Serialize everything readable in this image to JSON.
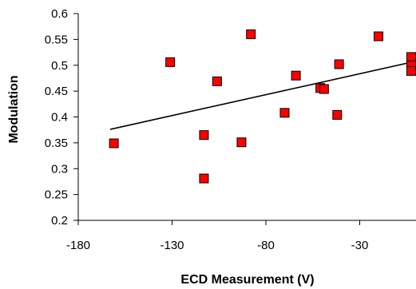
{
  "chart_data": {
    "type": "scatter",
    "title": "",
    "xlabel": "ECD Measurement (V)",
    "ylabel": "Modulation",
    "xlim": [
      -180,
      0
    ],
    "ylim": [
      0.2,
      0.6
    ],
    "xticks": [
      -180,
      -130,
      -80,
      -30
    ],
    "yticks": [
      0.2,
      0.25,
      0.3,
      0.35,
      0.4,
      0.45,
      0.5,
      0.55,
      0.6
    ],
    "grid": false,
    "legend": "none",
    "marker": "square",
    "marker_color": "#ff0000",
    "marker_edge_color": "#000000",
    "series": [
      {
        "x": [
          -161,
          -131,
          -113,
          -113,
          -106,
          -93,
          -88,
          -70,
          -64,
          -51,
          -49,
          -42,
          -41,
          -20,
          -2,
          -1,
          -1
        ],
        "y": [
          0.349,
          0.506,
          0.365,
          0.281,
          0.469,
          0.351,
          0.56,
          0.408,
          0.48,
          0.456,
          0.454,
          0.404,
          0.502,
          0.556,
          0.516,
          0.5,
          0.489
        ]
      }
    ],
    "trendline": {
      "x": [
        -163,
        -1
      ],
      "y": [
        0.376,
        0.507
      ]
    }
  }
}
